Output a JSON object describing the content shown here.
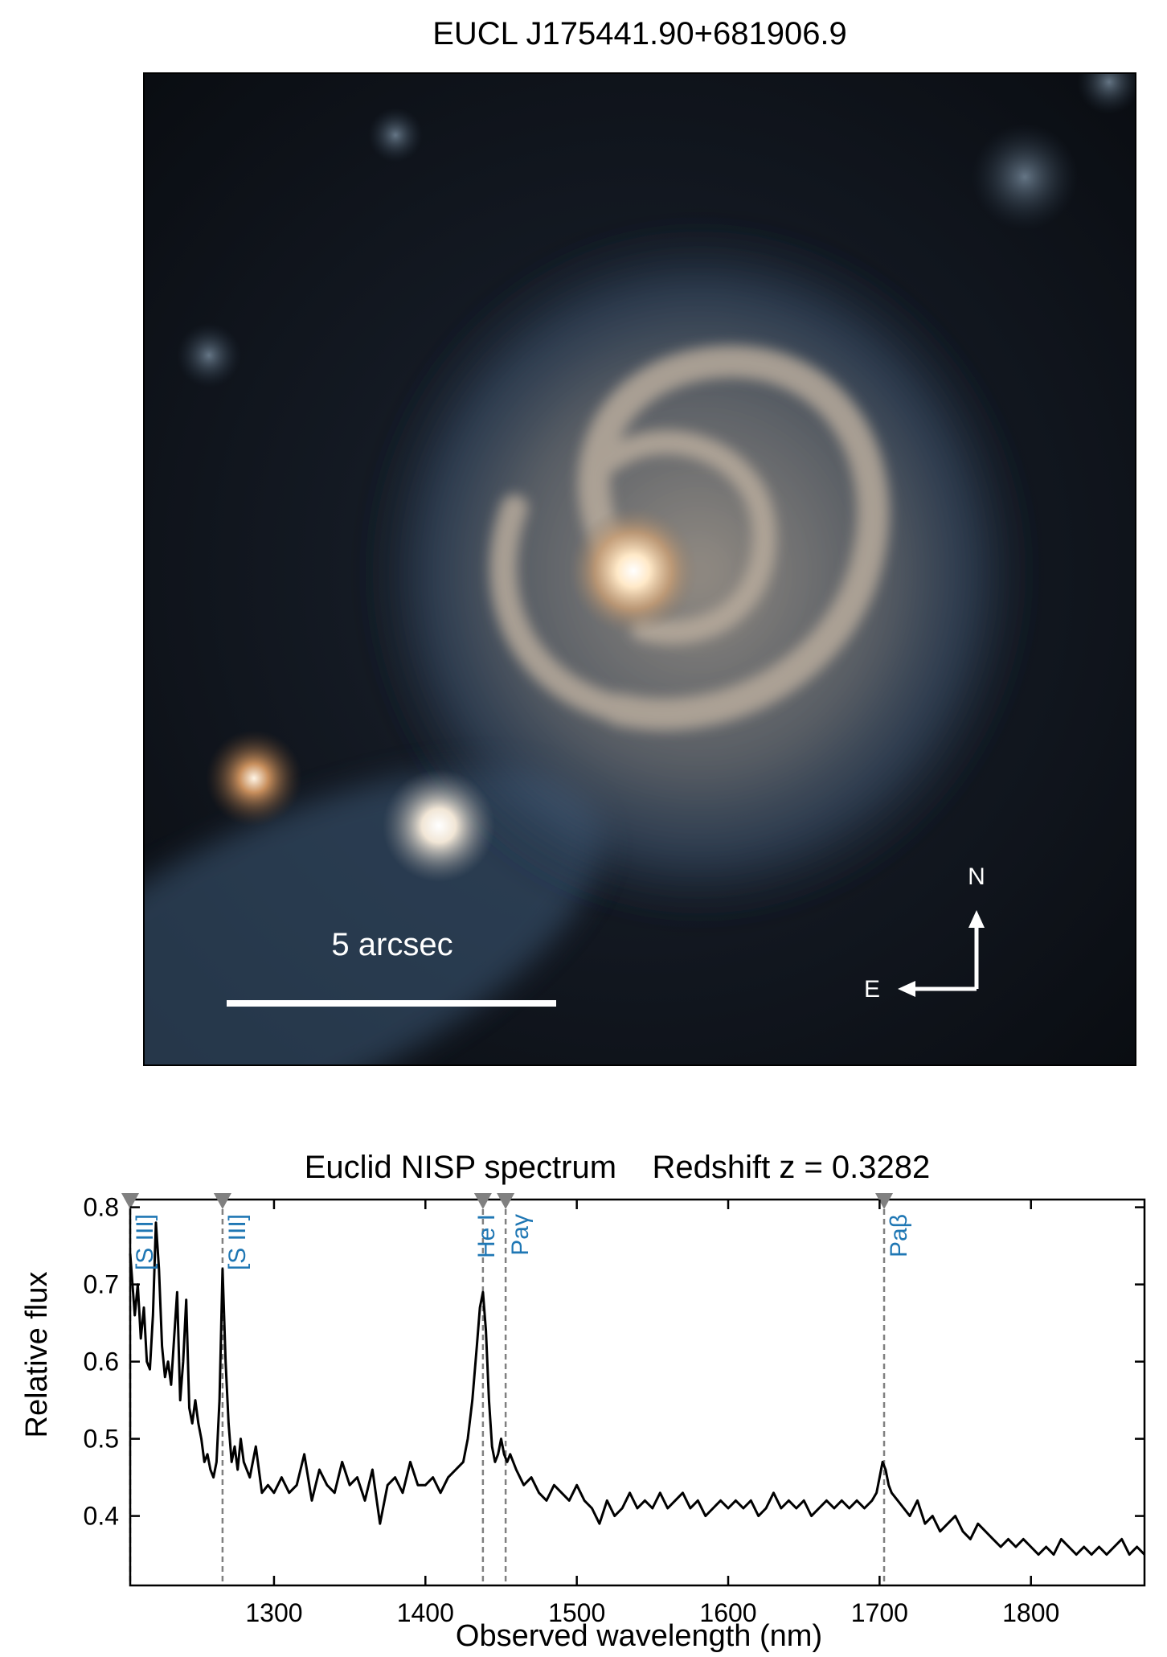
{
  "image_panel": {
    "title": "EUCL J175441.90+681906.9",
    "scale_bar_label": "5 arcsec",
    "compass_north": "N",
    "compass_east": "E"
  },
  "chart_data": {
    "type": "line",
    "title": "Euclid NISP spectrum    Redshift z = 0.3282",
    "xlabel": "Observed wavelength (nm)",
    "ylabel": "Relative flux",
    "xlim": [
      1205,
      1875
    ],
    "ylim": [
      0.31,
      0.81
    ],
    "xticks": [
      1300,
      1400,
      1500,
      1600,
      1700,
      1800
    ],
    "yticks": [
      0.4,
      0.5,
      0.6,
      0.7,
      0.8
    ],
    "line_color": "#000000",
    "label_color": "#1f77b4",
    "marker_color": "#808080",
    "lines": [
      {
        "name": "[S III]",
        "wavelength": 1205
      },
      {
        "name": "[S III]",
        "wavelength": 1266
      },
      {
        "name": "He I",
        "wavelength": 1438
      },
      {
        "name": "Paγ",
        "wavelength": 1453
      },
      {
        "name": "Paβ",
        "wavelength": 1703
      }
    ],
    "series": [
      {
        "x": [
          1205,
          1208,
          1210,
          1212,
          1214,
          1216,
          1218,
          1220,
          1222,
          1224,
          1226,
          1228,
          1230,
          1232,
          1234,
          1236,
          1238,
          1240,
          1242,
          1244,
          1246,
          1248,
          1250,
          1252,
          1254,
          1256,
          1258,
          1260,
          1262,
          1264,
          1266,
          1268,
          1270,
          1272,
          1274,
          1276,
          1278,
          1280,
          1284,
          1288,
          1292,
          1296,
          1300,
          1305,
          1310,
          1315,
          1320,
          1325,
          1330,
          1335,
          1340,
          1345,
          1350,
          1355,
          1360,
          1365,
          1370,
          1375,
          1380,
          1385,
          1390,
          1395,
          1400,
          1405,
          1410,
          1415,
          1420,
          1425,
          1428,
          1431,
          1434,
          1436,
          1438,
          1440,
          1442,
          1444,
          1446,
          1448,
          1450,
          1452,
          1454,
          1456,
          1460,
          1465,
          1470,
          1475,
          1480,
          1485,
          1490,
          1495,
          1500,
          1505,
          1510,
          1515,
          1520,
          1525,
          1530,
          1535,
          1540,
          1545,
          1550,
          1555,
          1560,
          1565,
          1570,
          1575,
          1580,
          1585,
          1590,
          1595,
          1600,
          1605,
          1610,
          1615,
          1620,
          1625,
          1630,
          1635,
          1640,
          1645,
          1650,
          1655,
          1660,
          1665,
          1670,
          1675,
          1680,
          1685,
          1690,
          1695,
          1698,
          1700,
          1702,
          1704,
          1706,
          1708,
          1712,
          1716,
          1720,
          1725,
          1730,
          1735,
          1740,
          1745,
          1750,
          1755,
          1760,
          1765,
          1770,
          1775,
          1780,
          1785,
          1790,
          1795,
          1800,
          1805,
          1810,
          1815,
          1820,
          1825,
          1830,
          1835,
          1840,
          1845,
          1850,
          1855,
          1860,
          1865,
          1870,
          1875
        ],
        "y": [
          0.74,
          0.66,
          0.7,
          0.63,
          0.67,
          0.6,
          0.59,
          0.66,
          0.78,
          0.72,
          0.62,
          0.58,
          0.6,
          0.57,
          0.63,
          0.69,
          0.55,
          0.6,
          0.68,
          0.54,
          0.52,
          0.55,
          0.52,
          0.5,
          0.47,
          0.48,
          0.46,
          0.45,
          0.47,
          0.55,
          0.72,
          0.6,
          0.52,
          0.47,
          0.49,
          0.46,
          0.5,
          0.47,
          0.45,
          0.49,
          0.43,
          0.44,
          0.43,
          0.45,
          0.43,
          0.44,
          0.48,
          0.42,
          0.46,
          0.44,
          0.43,
          0.47,
          0.44,
          0.45,
          0.42,
          0.46,
          0.39,
          0.44,
          0.45,
          0.43,
          0.47,
          0.44,
          0.44,
          0.45,
          0.43,
          0.45,
          0.46,
          0.47,
          0.5,
          0.55,
          0.62,
          0.67,
          0.69,
          0.64,
          0.55,
          0.49,
          0.47,
          0.48,
          0.5,
          0.48,
          0.47,
          0.48,
          0.46,
          0.44,
          0.45,
          0.43,
          0.42,
          0.44,
          0.43,
          0.42,
          0.44,
          0.42,
          0.41,
          0.39,
          0.42,
          0.4,
          0.41,
          0.43,
          0.41,
          0.42,
          0.41,
          0.43,
          0.41,
          0.42,
          0.43,
          0.41,
          0.42,
          0.4,
          0.41,
          0.42,
          0.41,
          0.42,
          0.41,
          0.42,
          0.4,
          0.41,
          0.43,
          0.41,
          0.42,
          0.41,
          0.42,
          0.4,
          0.41,
          0.42,
          0.41,
          0.42,
          0.41,
          0.42,
          0.41,
          0.42,
          0.43,
          0.45,
          0.47,
          0.46,
          0.44,
          0.43,
          0.42,
          0.41,
          0.4,
          0.42,
          0.39,
          0.4,
          0.38,
          0.39,
          0.4,
          0.38,
          0.37,
          0.39,
          0.38,
          0.37,
          0.36,
          0.37,
          0.36,
          0.37,
          0.36,
          0.35,
          0.36,
          0.35,
          0.37,
          0.36,
          0.35,
          0.36,
          0.35,
          0.36,
          0.35,
          0.36,
          0.37,
          0.35,
          0.36,
          0.35
        ]
      }
    ],
    "grid": false
  }
}
